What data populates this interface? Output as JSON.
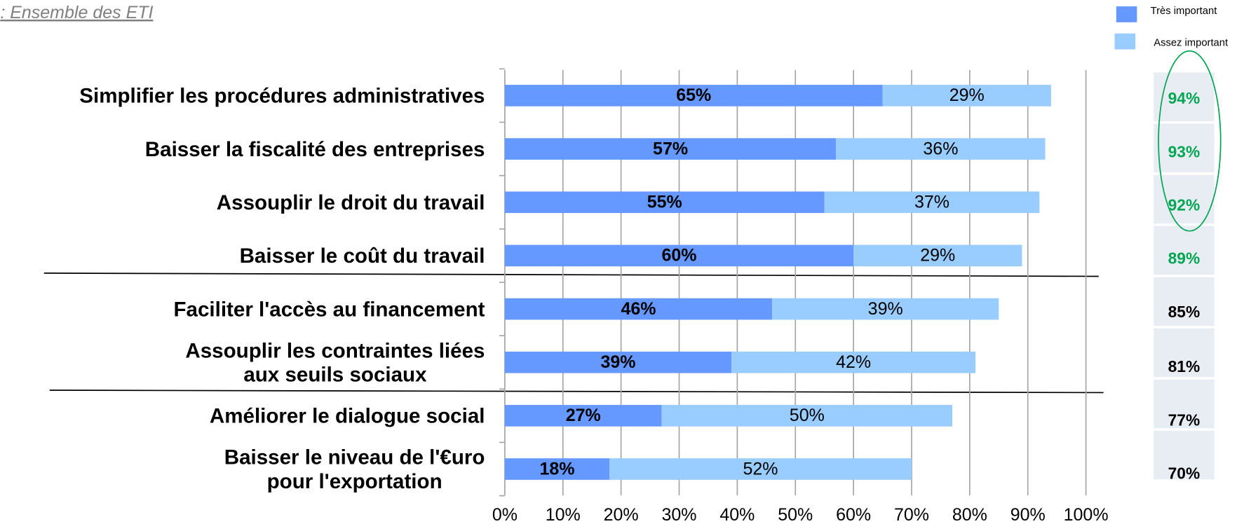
{
  "chart_data": {
    "type": "stacked-barh",
    "subtitle": ": Ensemble des ETI",
    "categories": [
      "Simplifier les procédures administratives",
      "Baisser la fiscalité des entreprises",
      "Assouplir le droit du travail",
      "Baisser le coût du travail",
      "Faciliter l'accès au financement",
      "Assouplir les contraintes liées\naux seuils sociaux",
      "Améliorer le dialogue social",
      "Baisser le niveau de l'€uro\npour l'exportation"
    ],
    "series": [
      {
        "name": "Très important",
        "color": "#6699ff",
        "values": [
          65,
          57,
          55,
          60,
          46,
          39,
          27,
          18
        ],
        "value_labels": [
          "65%",
          "57%",
          "55%",
          "60%",
          "46%",
          "39%",
          "27%",
          "18%"
        ]
      },
      {
        "name": "Assez important",
        "color": "#99ccff",
        "values": [
          29,
          36,
          37,
          29,
          39,
          42,
          50,
          52
        ],
        "value_labels": [
          "29%",
          "36%",
          "37%",
          "29%",
          "39%",
          "42%",
          "50%",
          "52%"
        ]
      }
    ],
    "totals": [
      94,
      93,
      92,
      89,
      85,
      81,
      77,
      70
    ],
    "totals_labels": [
      "94%",
      "93%",
      "92%",
      "89%",
      "85%",
      "81%",
      "77%",
      "70%"
    ],
    "totals_colors": [
      "#00a651",
      "#00a651",
      "#00a651",
      "#00a651",
      "#000000",
      "#000000",
      "#000000",
      "#000000"
    ],
    "xlim": [
      0,
      100
    ],
    "xticks": [
      {
        "value": 0,
        "label": "0%"
      },
      {
        "value": 10,
        "label": "10%"
      },
      {
        "value": 20,
        "label": "20%"
      },
      {
        "value": 30,
        "label": "30%"
      },
      {
        "value": 40,
        "label": "40%"
      },
      {
        "value": 50,
        "label": "50%"
      },
      {
        "value": 60,
        "label": "60%"
      },
      {
        "value": 70,
        "label": "70%"
      },
      {
        "value": 80,
        "label": "80%"
      },
      {
        "value": 90,
        "label": "90%"
      },
      {
        "value": 100,
        "label": "100%"
      }
    ],
    "grid": true
  }
}
